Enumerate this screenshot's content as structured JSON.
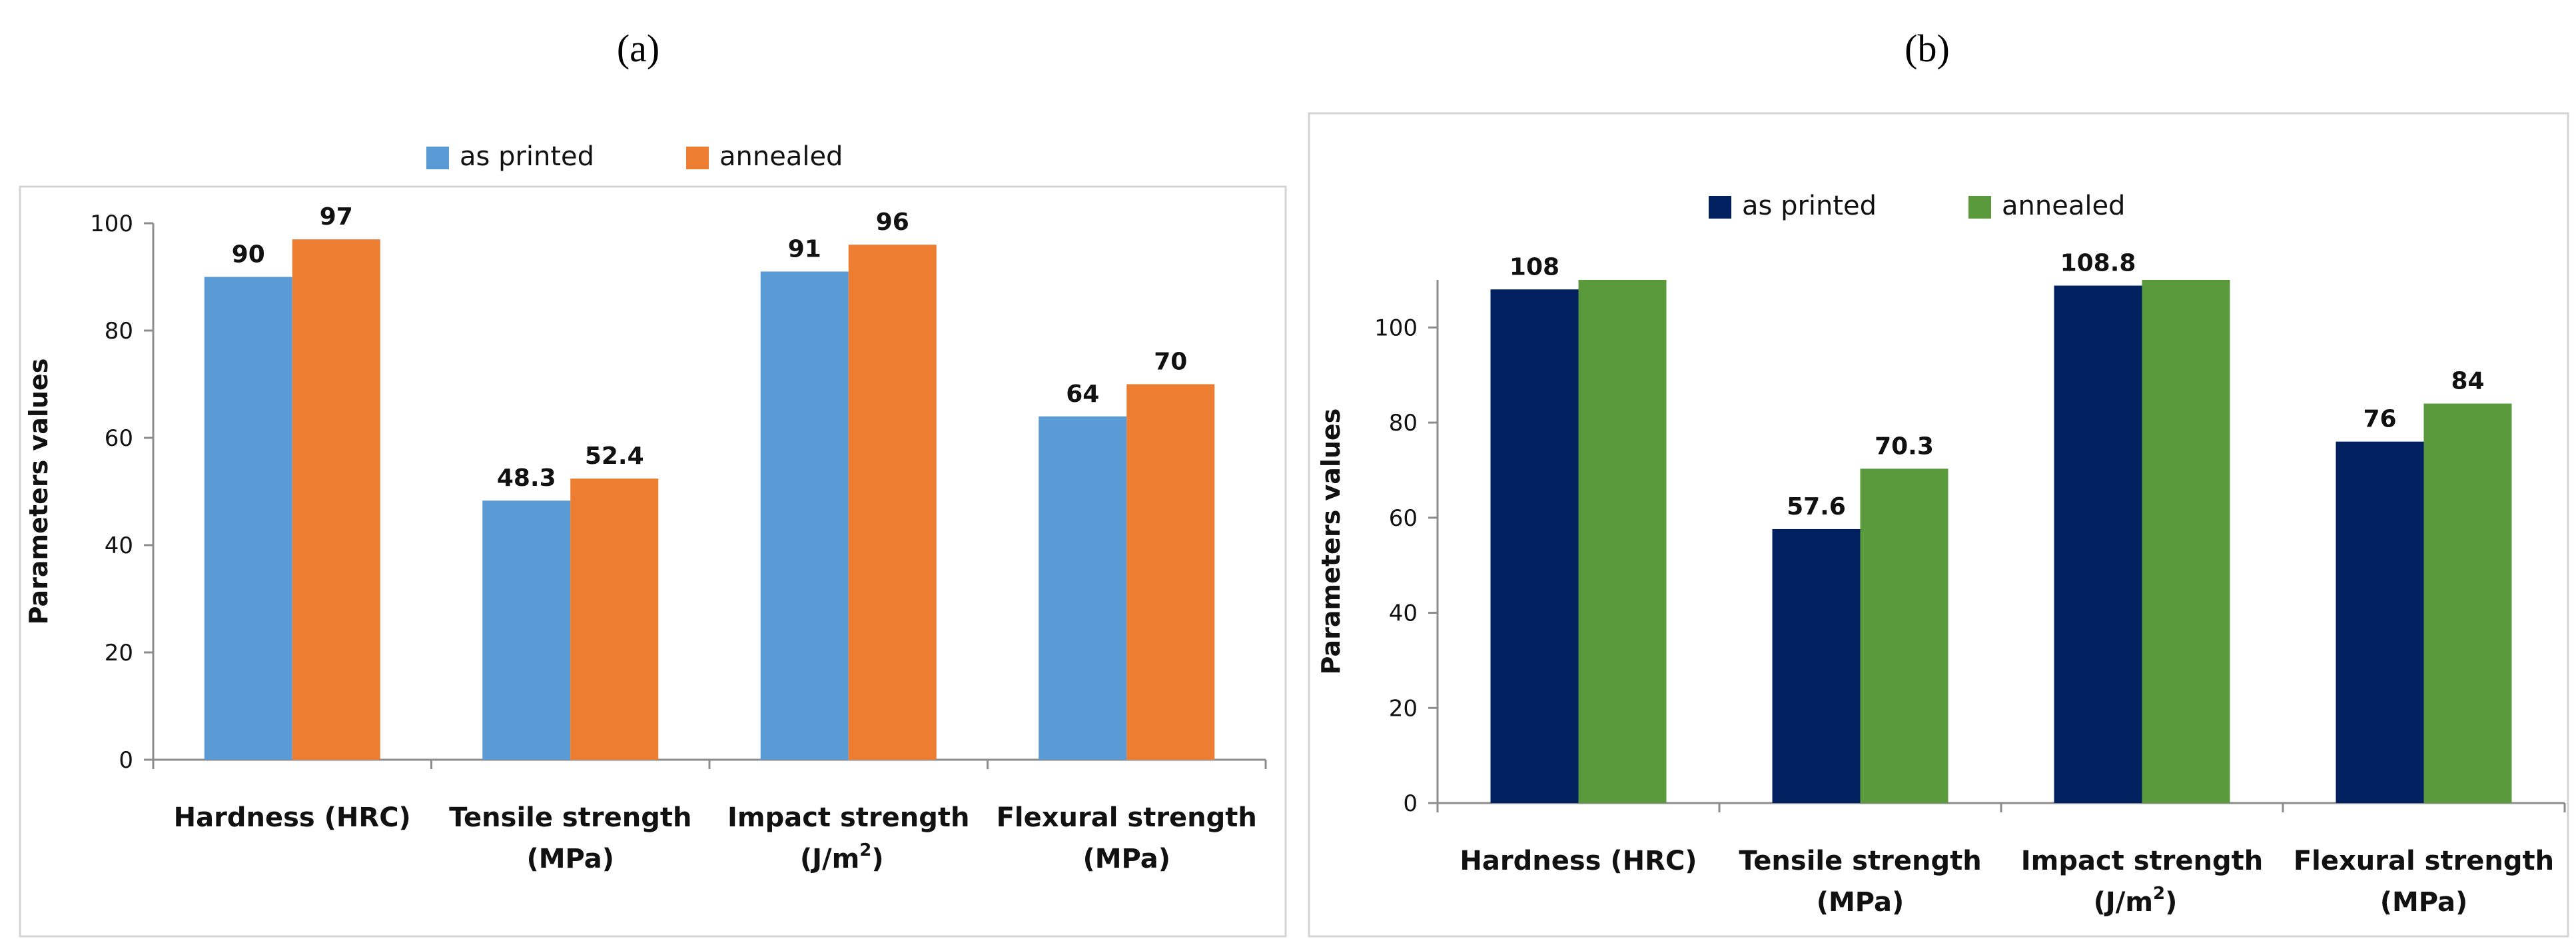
{
  "chart_data": [
    {
      "panel_label": "(a)",
      "type": "bar",
      "categories": [
        {
          "lines": [
            "Hardness (HRC)"
          ]
        },
        {
          "lines": [
            "Tensile strength",
            "(MPa)"
          ]
        },
        {
          "lines": [
            "Impact strength",
            "(J/m",
            "2",
            ")"
          ],
          "superscript": true
        },
        {
          "lines": [
            "Flexural strength",
            "(MPa)"
          ]
        }
      ],
      "series": [
        {
          "name": "as printed",
          "color": "#5b9bd5",
          "values": [
            90,
            48.3,
            91,
            64
          ],
          "labels": [
            "90",
            "48.3",
            "91",
            "64"
          ]
        },
        {
          "name": "annealed",
          "color": "#ed7d31",
          "values": [
            97,
            52.4,
            96,
            70
          ],
          "labels": [
            "97",
            "52.4",
            "96",
            "70"
          ]
        }
      ],
      "ylabel": "Parameters values",
      "ylim": [
        0,
        100
      ],
      "yticks": [
        0,
        20,
        40,
        60,
        80,
        100
      ],
      "legend": "top-center",
      "grid": false
    },
    {
      "panel_label": "(b)",
      "type": "bar",
      "categories": [
        {
          "lines": [
            "Hardness (HRC)"
          ]
        },
        {
          "lines": [
            "Tensile strength",
            "(MPa)"
          ]
        },
        {
          "lines": [
            "Impact strength",
            "(J/m",
            "2",
            ")"
          ],
          "superscript": true
        },
        {
          "lines": [
            "Flexural strength",
            "(MPa)"
          ]
        }
      ],
      "series": [
        {
          "name": "as printed",
          "color": "#002060",
          "values": [
            108,
            57.6,
            108.8,
            76
          ],
          "labels": [
            "108",
            "57.6",
            "108.8",
            "76"
          ]
        },
        {
          "name": "annealed",
          "color": "#5b9a3c",
          "values": [
            110,
            70.3,
            110,
            84
          ],
          "labels": [
            "",
            "70.3",
            "",
            "84"
          ]
        }
      ],
      "ylabel": "Parameters values",
      "ylim": [
        0,
        110
      ],
      "yticks": [
        0,
        20,
        40,
        60,
        80,
        100
      ],
      "legend": "top-center",
      "grid": false
    }
  ]
}
